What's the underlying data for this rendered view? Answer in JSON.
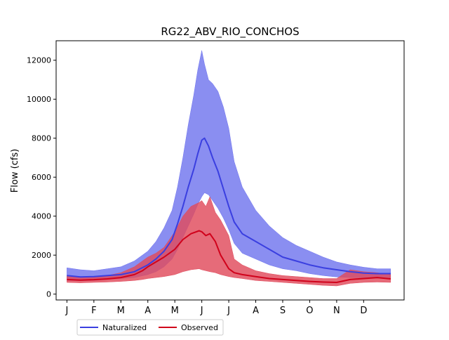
{
  "chart_data": {
    "type": "area",
    "title": "RG22_ABV_RIO_CONCHOS",
    "ylabel": "Flow (cfs)",
    "xlabel": "",
    "xlim": [
      -0.4,
      12.5
    ],
    "ylim": [
      -300,
      13000
    ],
    "x_ticks": [
      {
        "x": 0,
        "label": "J"
      },
      {
        "x": 1,
        "label": "F"
      },
      {
        "x": 2,
        "label": "M"
      },
      {
        "x": 3,
        "label": "A"
      },
      {
        "x": 4,
        "label": "M"
      },
      {
        "x": 5,
        "label": "J"
      },
      {
        "x": 6,
        "label": "J"
      },
      {
        "x": 7,
        "label": "A"
      },
      {
        "x": 8,
        "label": "S"
      },
      {
        "x": 9,
        "label": "O"
      },
      {
        "x": 10,
        "label": "N"
      },
      {
        "x": 11,
        "label": "D"
      }
    ],
    "y_ticks": [
      0,
      2000,
      4000,
      6000,
      8000,
      10000,
      12000
    ],
    "legend": {
      "placement": "bottom-left",
      "columns": 2
    },
    "series": [
      {
        "name": "Naturalized",
        "line_color": "#3a3fe0",
        "fill_color": "#6d72ee",
        "x": [
          0,
          0.5,
          1,
          1.5,
          2,
          2.5,
          3,
          3.3,
          3.6,
          3.9,
          4.1,
          4.3,
          4.5,
          4.7,
          4.85,
          5,
          5.1,
          5.25,
          5.4,
          5.6,
          5.8,
          6,
          6.2,
          6.5,
          7,
          7.5,
          8,
          8.5,
          9,
          9.5,
          10,
          10.5,
          11,
          11.5,
          12
        ],
        "mean": [
          950,
          880,
          900,
          950,
          1000,
          1150,
          1500,
          1800,
          2200,
          2800,
          3600,
          4500,
          5500,
          6400,
          7200,
          7900,
          8000,
          7600,
          7000,
          6300,
          5400,
          4500,
          3700,
          3100,
          2700,
          2300,
          1900,
          1700,
          1500,
          1350,
          1250,
          1150,
          1080,
          1050,
          1050
        ],
        "lower": [
          700,
          680,
          700,
          750,
          800,
          850,
          1000,
          1150,
          1400,
          1800,
          2300,
          2900,
          3500,
          4100,
          4600,
          5000,
          5200,
          5100,
          4800,
          4400,
          3900,
          3300,
          2600,
          2100,
          1800,
          1500,
          1300,
          1200,
          1050,
          950,
          880,
          850,
          830,
          820,
          820
        ],
        "upper": [
          1350,
          1250,
          1200,
          1300,
          1400,
          1700,
          2200,
          2700,
          3400,
          4300,
          5500,
          7000,
          8700,
          10200,
          11500,
          12500,
          11800,
          11000,
          10800,
          10400,
          9600,
          8500,
          6800,
          5500,
          4300,
          3500,
          2900,
          2500,
          2200,
          1900,
          1650,
          1500,
          1380,
          1300,
          1300
        ]
      },
      {
        "name": "Observed",
        "line_color": "#d0021b",
        "fill_color": "#e04a5c",
        "x": [
          0,
          0.5,
          1,
          1.5,
          2,
          2.5,
          2.8,
          3,
          3.3,
          3.6,
          4,
          4.3,
          4.6,
          4.9,
          5,
          5.15,
          5.3,
          5.5,
          5.7,
          6,
          6.2,
          6.5,
          7,
          7.5,
          8,
          8.5,
          9,
          9.5,
          10,
          10.5,
          11,
          11.5,
          12
        ],
        "mean": [
          750,
          720,
          740,
          780,
          850,
          1000,
          1200,
          1400,
          1650,
          1900,
          2300,
          2800,
          3100,
          3250,
          3200,
          3000,
          3100,
          2700,
          2000,
          1300,
          1100,
          1000,
          900,
          800,
          750,
          700,
          650,
          620,
          600,
          750,
          800,
          850,
          780
        ],
        "lower": [
          600,
          580,
          600,
          620,
          650,
          700,
          750,
          800,
          850,
          900,
          1000,
          1150,
          1250,
          1300,
          1250,
          1200,
          1150,
          1100,
          1000,
          900,
          850,
          800,
          700,
          650,
          600,
          550,
          500,
          450,
          420,
          550,
          600,
          620,
          600
        ],
        "upper": [
          950,
          900,
          900,
          950,
          1100,
          1400,
          1700,
          1900,
          2100,
          2400,
          3200,
          4000,
          4500,
          4700,
          4800,
          4500,
          5000,
          4200,
          3800,
          3000,
          1800,
          1500,
          1200,
          1050,
          950,
          900,
          850,
          800,
          800,
          1250,
          1150,
          1100,
          1000
        ]
      }
    ]
  }
}
